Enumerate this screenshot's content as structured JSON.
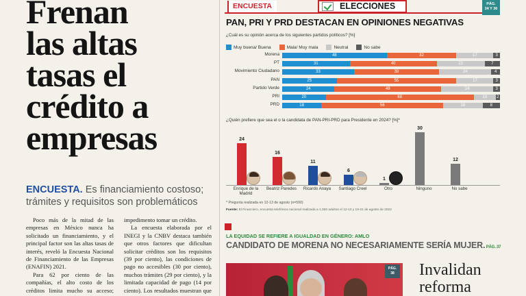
{
  "article": {
    "headline": [
      "Frenan",
      "las altas",
      "tasas el",
      "crédito a",
      "empresas"
    ],
    "kicker_tag": "ENCUESTA.",
    "kicker_text": " Es financiamiento costoso; trámites y requisitos son problemáticos",
    "col1": [
      "Poco más de la mitad de las empresas en México nunca ha solicitado un financiamiento, y el principal factor son las altas tasas de interés, reveló la Encuesta Nacional de Financiamiento de las Empresas (ENAFIN) 2021.",
      "Para 62 por ciento de las compañías, el alto costo de los créditos limita mucho su acceso; para 16 por ciento es poco y sólo 22"
    ],
    "col2": [
      "impedimento tomar un crédito.",
      "La encuesta elaborada por el INEGI y la CNBV destaca también que otros factores que dificultan solicitar créditos son los requisitos (39 por ciento), las condiciones de pago no accesibles (30 por ciento), muchos trámites (29 por ciento), y la limitada capacidad de pago (14 por ciento). Los resultados muestran que la participación es aún"
    ]
  },
  "section": {
    "tab": "ENCUESTA",
    "elecciones": "ELECCIONES",
    "page_badge": [
      "PÁG.",
      "34 Y 36"
    ]
  },
  "survey": {
    "title": "PAN, PRI Y PRD DESTACAN EN OPINIONES NEGATIVAS",
    "question": "¿Cuál es su opinión acerca de los siguientes partidos políticos? [%]",
    "legend": [
      {
        "label": "Muy buena/ Buena",
        "color": "#1f8fd1"
      },
      {
        "label": "Mala/ Muy mala",
        "color": "#e8663a"
      },
      {
        "label": "Neutral",
        "color": "#c9c9c9"
      },
      {
        "label": "No sabe",
        "color": "#5a5a5a"
      }
    ]
  },
  "chart_data": [
    {
      "type": "bar",
      "stacked": true,
      "orientation": "horizontal",
      "categories": [
        "Morena",
        "PT",
        "Movimiento Ciudadano",
        "PAN",
        "Partido Verde",
        "PRI",
        "PRD"
      ],
      "series": [
        {
          "name": "Muy buena/ Buena",
          "values": [
            48,
            31,
            33,
            25,
            24,
            20,
            18
          ]
        },
        {
          "name": "Mala/ Muy mala",
          "values": [
            32,
            40,
            39,
            55,
            49,
            68,
            56
          ]
        },
        {
          "name": "Neutral",
          "values": [
            17,
            22,
            24,
            17,
            24,
            10,
            18
          ]
        },
        {
          "name": "No sabe",
          "values": [
            3,
            7,
            4,
            3,
            3,
            2,
            8
          ]
        }
      ],
      "xlim": [
        0,
        100
      ]
    },
    {
      "type": "bar",
      "title": "¿Quién prefiere que sea el o la candidata de PAN-PRI-PRD para Presidente en 2024? [%]*",
      "categories": [
        "Enrique de la Madrid",
        "Beatriz Paredes",
        "Ricardo Anaya",
        "Santiago Creel",
        "Otro",
        "Ninguno",
        "No sabe"
      ],
      "values": [
        24,
        16,
        11,
        6,
        1,
        30,
        12
      ],
      "colors": [
        "#d12a2f",
        "#d12a2f",
        "#1f4f9c",
        "#1f4f9c",
        "#7a7a7a",
        "#7a7a7a",
        "#7a7a7a"
      ],
      "faces": [
        "male",
        "female",
        "male",
        "gray",
        "silhouette",
        "none",
        "none"
      ],
      "ylim": [
        0,
        32
      ]
    }
  ],
  "notes": {
    "footnote": "* Pregunta realizada en 12-13 de agosto (n=590)",
    "source_label": "Fuente:",
    "source_text": " El Financiero, encuesta telefónica nacional realizada a 1,000 adultos el 12-13 y 19-21 de agosto de 2022"
  },
  "related": {
    "kicker": "LA EQUIDAD SE REFIERE A IGUALDAD EN GÉNERO: AMLO",
    "headline": "CANDIDATO DE MORENA NO NECESARIAMENTE SERÍA MUJER.",
    "page": " PÁG. 37",
    "photo_badge": [
      "PÁG.",
      "38"
    ],
    "side_headline": [
      "Invalidan",
      "reforma"
    ]
  }
}
